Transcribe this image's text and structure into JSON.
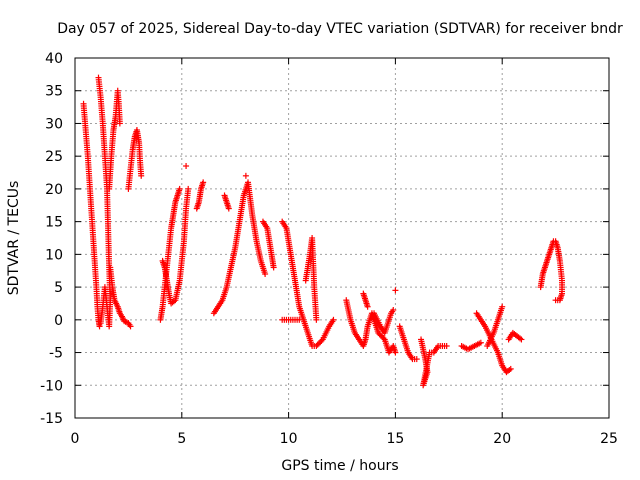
{
  "chart_data": {
    "type": "scatter",
    "title": "Day 057 of 2025, Sidereal Day-to-day VTEC variation (SDTVAR) for receiver bndr",
    "xlabel": "GPS time / hours",
    "ylabel": "SDTVAR / TECUs",
    "xlim": [
      0,
      25
    ],
    "ylim": [
      -15,
      40
    ],
    "xticks": [
      0,
      5,
      10,
      15,
      20,
      25
    ],
    "yticks": [
      -15,
      -10,
      -5,
      0,
      5,
      10,
      15,
      20,
      25,
      30,
      35,
      40
    ],
    "grid": true,
    "marker": "+",
    "color": "#ff0000",
    "segments": [
      [
        [
          0.4,
          33
        ],
        [
          0.5,
          29
        ],
        [
          0.6,
          25
        ],
        [
          0.7,
          20
        ],
        [
          0.8,
          15
        ],
        [
          0.9,
          10
        ],
        [
          1.0,
          5
        ],
        [
          1.05,
          2
        ],
        [
          1.1,
          0
        ],
        [
          1.15,
          -1
        ]
      ],
      [
        [
          1.1,
          37
        ],
        [
          1.2,
          34
        ],
        [
          1.3,
          30
        ],
        [
          1.4,
          25
        ],
        [
          1.5,
          20
        ],
        [
          1.55,
          14
        ],
        [
          1.6,
          8
        ],
        [
          1.65,
          3
        ],
        [
          1.6,
          -1
        ],
        [
          1.5,
          2
        ],
        [
          1.4,
          5
        ],
        [
          1.3,
          2
        ],
        [
          1.2,
          -0.5
        ]
      ],
      [
        [
          1.6,
          20
        ],
        [
          1.7,
          25
        ],
        [
          1.8,
          29
        ],
        [
          1.9,
          31
        ],
        [
          2.0,
          35
        ],
        [
          2.05,
          33
        ],
        [
          2.1,
          30
        ]
      ],
      [
        [
          1.65,
          8
        ],
        [
          1.75,
          5
        ],
        [
          1.85,
          3
        ],
        [
          2.0,
          2
        ],
        [
          2.1,
          1
        ],
        [
          2.2,
          0.5
        ],
        [
          2.3,
          -0.2
        ],
        [
          2.5,
          -0.5
        ],
        [
          2.6,
          -1
        ]
      ],
      [
        [
          2.5,
          20
        ],
        [
          2.6,
          23
        ],
        [
          2.7,
          26
        ],
        [
          2.8,
          28
        ],
        [
          2.9,
          29
        ],
        [
          3.0,
          27
        ],
        [
          3.05,
          24
        ],
        [
          3.1,
          22
        ]
      ],
      [
        [
          4.1,
          9
        ],
        [
          4.2,
          8
        ],
        [
          4.3,
          6
        ],
        [
          4.4,
          4
        ],
        [
          4.5,
          2.5
        ],
        [
          4.7,
          3
        ],
        [
          4.9,
          6
        ],
        [
          5.1,
          12
        ],
        [
          5.2,
          17
        ],
        [
          5.3,
          20
        ]
      ],
      [
        [
          4.0,
          0
        ],
        [
          4.1,
          2
        ],
        [
          4.2,
          5
        ],
        [
          4.3,
          8
        ],
        [
          4.4,
          11
        ],
        [
          4.5,
          14
        ],
        [
          4.6,
          16
        ],
        [
          4.7,
          18
        ],
        [
          4.8,
          19
        ],
        [
          4.9,
          20
        ]
      ],
      [
        [
          5.2,
          23.5
        ]
      ],
      [
        [
          5.7,
          17
        ],
        [
          5.8,
          18
        ],
        [
          5.9,
          20
        ],
        [
          6.0,
          21
        ]
      ],
      [
        [
          6.5,
          1
        ],
        [
          6.7,
          2
        ],
        [
          6.9,
          3
        ],
        [
          7.1,
          5
        ],
        [
          7.3,
          8
        ],
        [
          7.5,
          11
        ],
        [
          7.7,
          15
        ],
        [
          7.9,
          19
        ],
        [
          8.1,
          21
        ],
        [
          8.3,
          16
        ],
        [
          8.5,
          12
        ],
        [
          8.7,
          9
        ],
        [
          8.9,
          7
        ]
      ],
      [
        [
          7.0,
          19
        ],
        [
          7.1,
          18
        ],
        [
          7.2,
          17
        ]
      ],
      [
        [
          8.0,
          22
        ]
      ],
      [
        [
          8.8,
          15
        ],
        [
          9.0,
          14
        ],
        [
          9.2,
          10
        ],
        [
          9.3,
          8
        ]
      ],
      [
        [
          9.7,
          15
        ],
        [
          9.9,
          14
        ],
        [
          10.1,
          10
        ],
        [
          10.3,
          6
        ],
        [
          10.5,
          2
        ],
        [
          10.7,
          0
        ],
        [
          10.9,
          -2
        ],
        [
          11.1,
          -4
        ],
        [
          11.3,
          -4
        ],
        [
          11.6,
          -3
        ],
        [
          11.9,
          -1
        ],
        [
          12.1,
          0
        ]
      ],
      [
        [
          9.7,
          0
        ],
        [
          9.9,
          0
        ],
        [
          10.1,
          0
        ],
        [
          10.3,
          0
        ],
        [
          10.5,
          0
        ]
      ],
      [
        [
          10.8,
          6
        ],
        [
          11.0,
          10
        ],
        [
          11.1,
          12.5
        ],
        [
          11.2,
          5
        ],
        [
          11.3,
          0
        ]
      ],
      [
        [
          12.7,
          3
        ],
        [
          12.9,
          0
        ],
        [
          13.1,
          -2
        ],
        [
          13.3,
          -3
        ],
        [
          13.5,
          -4
        ],
        [
          13.6,
          -3
        ],
        [
          13.7,
          -1
        ],
        [
          13.9,
          1
        ],
        [
          14.0,
          0
        ],
        [
          14.2,
          -2
        ],
        [
          14.5,
          -3
        ],
        [
          14.7,
          -5
        ],
        [
          14.9,
          -4
        ],
        [
          15.0,
          -5
        ]
      ],
      [
        [
          13.5,
          4
        ],
        [
          13.6,
          3
        ],
        [
          13.7,
          2
        ]
      ],
      [
        [
          14.0,
          1
        ],
        [
          14.3,
          -1
        ],
        [
          14.5,
          -2
        ],
        [
          14.8,
          1
        ],
        [
          14.9,
          1.5
        ]
      ],
      [
        [
          15.0,
          4.5
        ]
      ],
      [
        [
          15.2,
          -1
        ],
        [
          15.4,
          -3
        ],
        [
          15.6,
          -5
        ],
        [
          15.8,
          -6
        ],
        [
          16.0,
          -6
        ]
      ],
      [
        [
          16.2,
          -3
        ],
        [
          16.4,
          -6
        ],
        [
          16.5,
          -8
        ],
        [
          16.3,
          -10
        ],
        [
          16.6,
          -5
        ],
        [
          16.8,
          -5
        ],
        [
          17.0,
          -4
        ],
        [
          17.2,
          -4
        ],
        [
          17.4,
          -4
        ]
      ],
      [
        [
          18.1,
          -4
        ],
        [
          18.4,
          -4.5
        ],
        [
          18.7,
          -4
        ],
        [
          19.0,
          -3.5
        ]
      ],
      [
        [
          18.8,
          1
        ],
        [
          19.0,
          0
        ],
        [
          19.2,
          -1
        ],
        [
          19.5,
          -3
        ],
        [
          19.8,
          -5
        ],
        [
          20.0,
          -7
        ],
        [
          20.2,
          -8
        ],
        [
          20.4,
          -7.5
        ]
      ],
      [
        [
          19.3,
          -4
        ],
        [
          19.6,
          -2
        ],
        [
          19.8,
          0
        ],
        [
          20.0,
          2
        ]
      ],
      [
        [
          20.3,
          -3
        ],
        [
          20.5,
          -2
        ],
        [
          20.7,
          -2.5
        ],
        [
          20.9,
          -3
        ]
      ],
      [
        [
          21.8,
          5
        ],
        [
          21.9,
          7
        ],
        [
          22.0,
          8
        ],
        [
          22.1,
          9
        ],
        [
          22.2,
          10
        ],
        [
          22.3,
          11
        ],
        [
          22.4,
          12
        ],
        [
          22.5,
          12
        ],
        [
          22.6,
          11
        ],
        [
          22.7,
          9
        ],
        [
          22.8,
          6
        ],
        [
          22.8,
          4
        ],
        [
          22.7,
          3
        ],
        [
          22.5,
          3
        ]
      ]
    ]
  }
}
